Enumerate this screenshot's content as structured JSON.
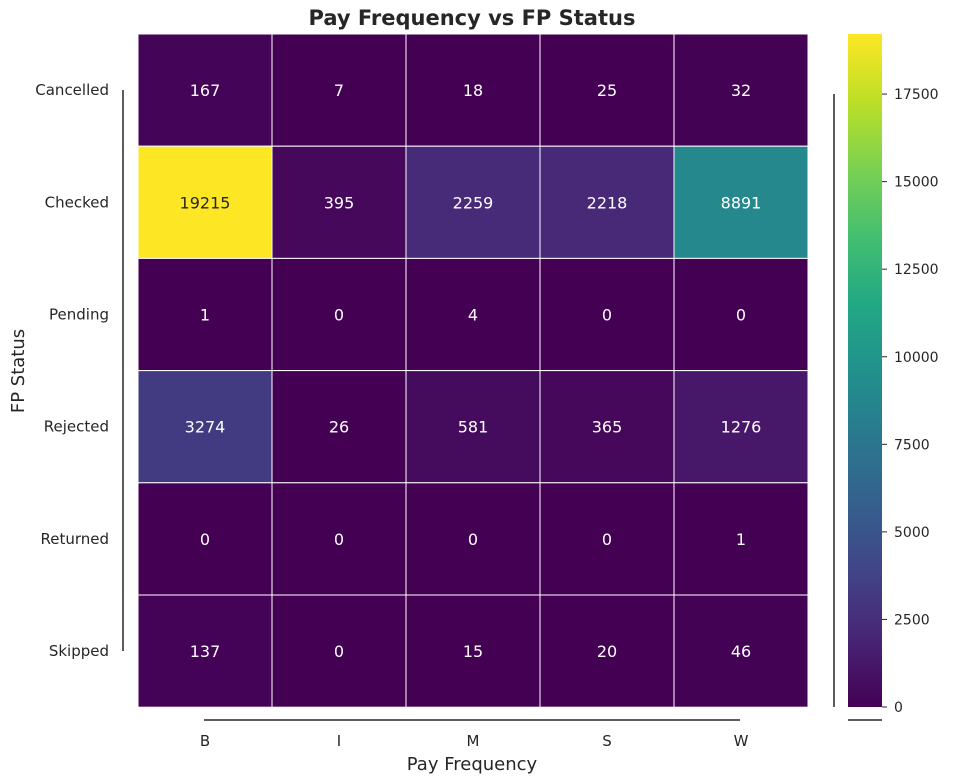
{
  "chart_data": {
    "type": "heatmap",
    "title": "Pay Frequency vs FP Status",
    "xlabel": "Pay Frequency",
    "ylabel": "FP Status",
    "x_categories": [
      "B",
      "I",
      "M",
      "S",
      "W"
    ],
    "y_categories": [
      "Cancelled",
      "Checked",
      "Pending",
      "Rejected",
      "Returned",
      "Skipped"
    ],
    "values": [
      [
        167,
        7,
        18,
        25,
        32
      ],
      [
        19215,
        395,
        2259,
        2218,
        8891
      ],
      [
        1,
        0,
        4,
        0,
        0
      ],
      [
        3274,
        26,
        581,
        365,
        1276
      ],
      [
        0,
        0,
        0,
        0,
        1
      ],
      [
        137,
        0,
        15,
        20,
        46
      ]
    ],
    "colormap": "viridis",
    "colorbar": {
      "range": [
        0,
        19215
      ],
      "ticks": [
        0,
        2500,
        5000,
        7500,
        10000,
        12500,
        15000,
        17500
      ]
    },
    "annotations": "cell values"
  }
}
